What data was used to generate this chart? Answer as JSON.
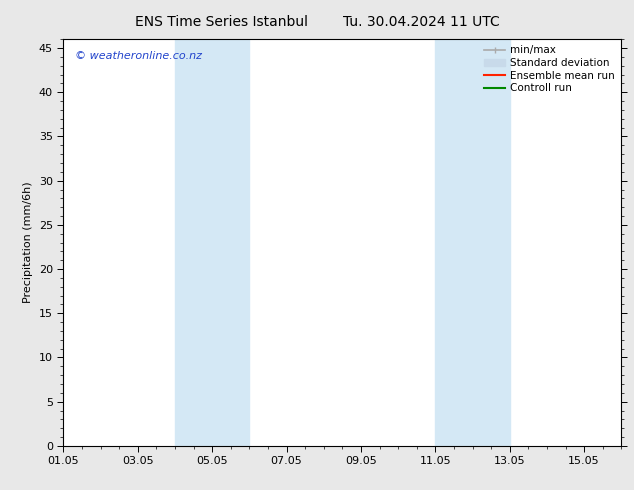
{
  "title_left": "ENS Time Series Istanbul",
  "title_right": "Tu. 30.04.2024 11 UTC",
  "ylabel": "Precipitation (mm/6h)",
  "xlim": [
    1,
    16
  ],
  "ylim": [
    0,
    46
  ],
  "yticks": [
    0,
    5,
    10,
    15,
    20,
    25,
    30,
    35,
    40,
    45
  ],
  "xtick_labels": [
    "01.05",
    "03.05",
    "05.05",
    "07.05",
    "09.05",
    "11.05",
    "13.05",
    "15.05"
  ],
  "xtick_positions": [
    1,
    3,
    5,
    7,
    9,
    11,
    13,
    15
  ],
  "blue_bands": [
    {
      "xmin": 4.0,
      "xmax": 6.0
    },
    {
      "xmin": 11.0,
      "xmax": 13.0
    }
  ],
  "watermark": "© weatheronline.co.nz",
  "watermark_color": "#2244cc",
  "bg_color": "#e8e8e8",
  "plot_bg_color": "#ffffff",
  "band_color": "#d4e8f5",
  "legend_items": [
    {
      "label": "min/max",
      "color": "#aaaaaa",
      "lw": 1.2
    },
    {
      "label": "Standard deviation",
      "color": "#c8daea",
      "lw": 8
    },
    {
      "label": "Ensemble mean run",
      "color": "#ff2200",
      "lw": 1.5
    },
    {
      "label": "Controll run",
      "color": "#008800",
      "lw": 1.5
    }
  ],
  "title_fontsize": 10,
  "ylabel_fontsize": 8,
  "tick_fontsize": 8,
  "legend_fontsize": 7.5,
  "watermark_fontsize": 8
}
